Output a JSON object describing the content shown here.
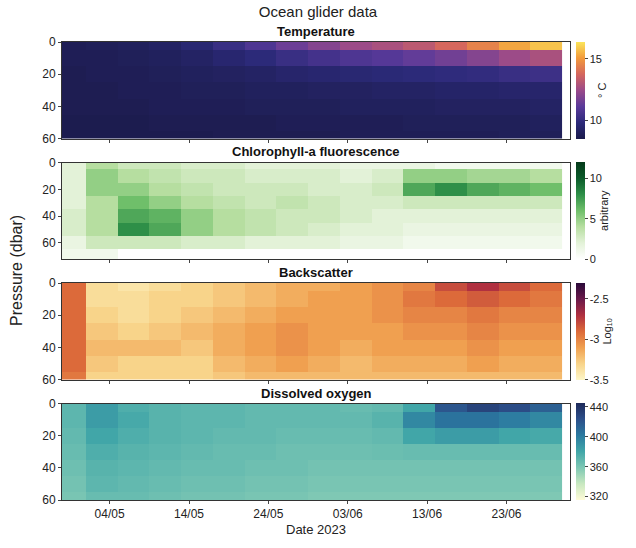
{
  "chart_data": {
    "type": "heatmap",
    "title": "Ocean glider data",
    "xlabel": "Date 2023",
    "ylabel": "Pressure (dbar)",
    "grid": false,
    "x": [
      "2023-04-29",
      "2023-05-03",
      "2023-05-07",
      "2023-05-11",
      "2023-05-15",
      "2023-05-19",
      "2023-05-23",
      "2023-05-27",
      "2023-05-31",
      "2023-06-04",
      "2023-06-08",
      "2023-06-12",
      "2023-06-16",
      "2023-06-20",
      "2023-06-24",
      "2023-06-28"
    ],
    "xlim": [
      "2023-04-28",
      "2023-07-01"
    ],
    "xticks": [
      {
        "value": "2023-05-04",
        "label": "04/05"
      },
      {
        "value": "2023-05-14",
        "label": "14/05"
      },
      {
        "value": "2023-05-24",
        "label": "24/05"
      },
      {
        "value": "2023-06-03",
        "label": "03/06"
      },
      {
        "value": "2023-06-13",
        "label": "13/06"
      },
      {
        "value": "2023-06-23",
        "label": "23/06"
      }
    ],
    "panels": [
      {
        "title": "Temperature",
        "colorbar_title": "° C",
        "colors": [
          "#1b1b4b",
          "#2c2a7a",
          "#5a3a9a",
          "#9a4a8a",
          "#d4665e",
          "#f29a3c",
          "#fbe55a"
        ],
        "zlim": [
          8.5,
          16.4
        ],
        "zticks": [
          10,
          15
        ],
        "ylim": [
          60,
          0
        ],
        "yticks": [
          0,
          20,
          40,
          60
        ],
        "y": [
          0,
          10,
          20,
          30,
          40,
          50,
          60
        ],
        "z": [
          [
            8.8,
            8.9,
            9.0,
            9.2,
            9.6,
            10.2,
            10.8,
            11.5,
            12.0,
            12.5,
            12.8,
            13.2,
            13.8,
            14.5,
            15.3,
            15.8
          ],
          [
            8.8,
            8.8,
            8.9,
            9.0,
            9.2,
            9.5,
            9.8,
            10.2,
            10.5,
            10.8,
            11.0,
            11.3,
            11.6,
            12.0,
            12.5,
            12.8
          ],
          [
            8.7,
            8.8,
            8.8,
            8.9,
            9.0,
            9.1,
            9.2,
            9.4,
            9.5,
            9.6,
            9.7,
            9.8,
            9.9,
            10.0,
            10.2,
            10.3
          ],
          [
            8.7,
            8.7,
            8.8,
            8.8,
            8.9,
            8.9,
            9.0,
            9.0,
            9.1,
            9.1,
            9.2,
            9.2,
            9.3,
            9.3,
            9.4,
            9.4
          ],
          [
            8.7,
            8.7,
            8.7,
            8.8,
            8.8,
            8.8,
            8.9,
            8.9,
            8.9,
            9.0,
            9.0,
            9.0,
            9.1,
            9.1,
            9.1,
            9.2
          ],
          [
            8.6,
            8.6,
            8.6,
            8.7,
            8.7,
            8.7,
            8.7,
            8.8,
            8.8,
            8.8,
            8.8,
            8.9,
            8.9,
            8.9,
            8.9,
            9.0
          ],
          [
            8.6,
            8.6,
            8.6,
            8.6,
            8.6,
            8.7,
            8.7,
            8.7,
            8.7,
            8.8,
            8.8,
            8.8,
            8.8,
            8.8,
            8.9,
            8.9
          ]
        ]
      },
      {
        "title": "Chlorophyll-a fluorescence",
        "colorbar_title": "arbitrary",
        "colors": [
          "#ffffff",
          "#e3f2d8",
          "#b6dea0",
          "#6fbf6a",
          "#2e8f48",
          "#0b5a2a",
          "#053a1a"
        ],
        "zlim": [
          0,
          12
        ],
        "zticks": [
          0,
          5,
          10
        ],
        "ylim": [
          72,
          0
        ],
        "yticks": [
          0,
          20,
          40,
          60
        ],
        "y": [
          0,
          10,
          20,
          30,
          40,
          50,
          60,
          70
        ],
        "z": [
          [
            2,
            4,
            3,
            3,
            2.5,
            2.5,
            2,
            2,
            2,
            1.5,
            1.5,
            1.5,
            1,
            1,
            1,
            1
          ],
          [
            2,
            5,
            4,
            3.5,
            3,
            3,
            2.5,
            2.5,
            2.5,
            2,
            2.5,
            5,
            5,
            4.5,
            4.5,
            4
          ],
          [
            2,
            5,
            5,
            4,
            3.5,
            3,
            3,
            3,
            2.5,
            2.5,
            3,
            7,
            8,
            7,
            6.5,
            6
          ],
          [
            2,
            4,
            6,
            5,
            4,
            3.5,
            3,
            3.5,
            3,
            2.5,
            2.5,
            3,
            3,
            3,
            3,
            3
          ],
          [
            2.5,
            4,
            7,
            6.5,
            5,
            4,
            3.5,
            3,
            3,
            2.5,
            2,
            2,
            2,
            2,
            2,
            2
          ],
          [
            2.5,
            4,
            8,
            7,
            5,
            4,
            3.5,
            3,
            2.5,
            2,
            2,
            1.5,
            1.5,
            1.5,
            1.5,
            1.5
          ],
          [
            1.5,
            3,
            3,
            3,
            2.5,
            2.5,
            2,
            2,
            2,
            1.5,
            1.5,
            1,
            1,
            1,
            1,
            1
          ],
          [
            1,
            1,
            null,
            null,
            null,
            null,
            null,
            null,
            null,
            null,
            null,
            null,
            null,
            null,
            null,
            null
          ]
        ]
      },
      {
        "title": "Backscatter",
        "colorbar_title": "Log₁₀",
        "colors": [
          "#fdf6c8",
          "#f8d48a",
          "#f0a050",
          "#dc6a3a",
          "#b03040",
          "#6a1a4a",
          "#2a0a3a"
        ],
        "zlim": [
          -3.5,
          -2.3
        ],
        "zticks": [
          -3.5,
          -3,
          -2.5
        ],
        "ylim": [
          60,
          0
        ],
        "yticks": [
          0,
          20,
          40,
          60
        ],
        "y": [
          0,
          10,
          20,
          30,
          40,
          50,
          60
        ],
        "z": [
          [
            -2.9,
            -3.35,
            -3.4,
            -3.35,
            -3.3,
            -3.25,
            -3.2,
            -3.15,
            -3.15,
            -3.1,
            -3.05,
            -3.0,
            -2.8,
            -2.7,
            -2.8,
            -2.9
          ],
          [
            -2.9,
            -3.35,
            -3.35,
            -3.3,
            -3.3,
            -3.25,
            -3.2,
            -3.15,
            -3.1,
            -3.1,
            -3.05,
            -2.95,
            -2.9,
            -2.85,
            -2.9,
            -2.95
          ],
          [
            -2.9,
            -3.3,
            -3.35,
            -3.3,
            -3.25,
            -3.2,
            -3.15,
            -3.1,
            -3.1,
            -3.1,
            -3.05,
            -3.0,
            -3.0,
            -2.95,
            -3.0,
            -3.0
          ],
          [
            -2.9,
            -3.25,
            -3.3,
            -3.25,
            -3.2,
            -3.15,
            -3.1,
            -3.05,
            -3.1,
            -3.1,
            -3.1,
            -3.05,
            -3.05,
            -3.0,
            -3.05,
            -3.05
          ],
          [
            -2.9,
            -3.2,
            -3.2,
            -3.2,
            -3.25,
            -3.15,
            -3.1,
            -3.05,
            -3.1,
            -3.15,
            -3.1,
            -3.1,
            -3.1,
            -3.05,
            -3.1,
            -3.1
          ],
          [
            -2.9,
            -3.25,
            -3.3,
            -3.3,
            -3.3,
            -3.2,
            -3.15,
            -3.1,
            -3.15,
            -3.2,
            -3.15,
            -3.15,
            -3.15,
            -3.1,
            -3.15,
            -3.15
          ],
          [
            -2.95,
            -3.3,
            -3.3,
            -3.3,
            -3.3,
            -3.25,
            -3.2,
            -3.2,
            -3.2,
            -3.2,
            -3.2,
            -3.2,
            -3.2,
            -3.2,
            -3.2,
            -3.2
          ]
        ]
      },
      {
        "title": "Dissolved oxygen",
        "colors": [
          "#fefbd8",
          "#c8e8c0",
          "#7ec8b4",
          "#41a6a8",
          "#2b7aa0",
          "#2c4f8a",
          "#1e2a5a"
        ],
        "zlim": [
          315,
          445
        ],
        "zticks": [
          320,
          360,
          400,
          440
        ],
        "ylim": [
          60,
          0
        ],
        "yticks": [
          0,
          20,
          40,
          60
        ],
        "y": [
          0,
          10,
          20,
          30,
          40,
          50,
          60
        ],
        "z": [
          [
            370,
            385,
            375,
            372,
            370,
            370,
            368,
            368,
            368,
            366,
            368,
            380,
            420,
            430,
            425,
            415
          ],
          [
            370,
            385,
            378,
            372,
            370,
            370,
            368,
            368,
            368,
            368,
            372,
            395,
            405,
            405,
            400,
            395
          ],
          [
            368,
            380,
            375,
            372,
            370,
            368,
            368,
            366,
            366,
            366,
            368,
            380,
            385,
            385,
            380,
            378
          ],
          [
            366,
            375,
            372,
            370,
            368,
            366,
            366,
            364,
            364,
            364,
            365,
            366,
            366,
            366,
            366,
            366
          ],
          [
            364,
            372,
            370,
            368,
            366,
            366,
            364,
            364,
            362,
            362,
            362,
            362,
            362,
            362,
            362,
            362
          ],
          [
            362,
            370,
            368,
            366,
            364,
            364,
            362,
            362,
            360,
            360,
            360,
            360,
            360,
            360,
            360,
            360
          ],
          [
            360,
            366,
            366,
            364,
            362,
            362,
            360,
            360,
            358,
            358,
            358,
            358,
            358,
            358,
            358,
            358
          ]
        ]
      }
    ]
  }
}
